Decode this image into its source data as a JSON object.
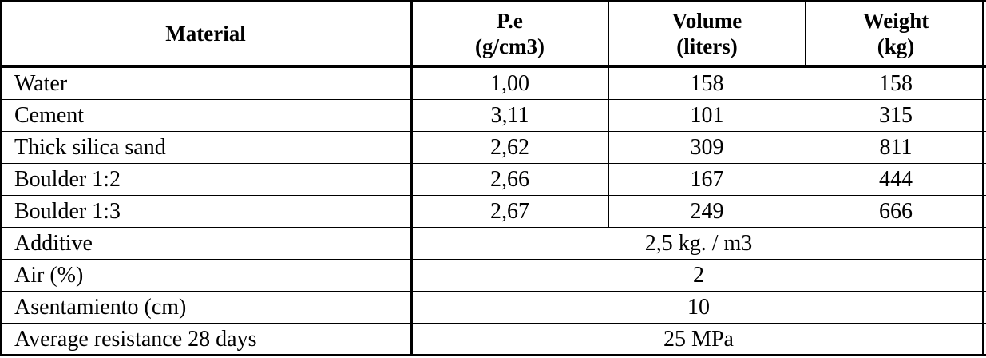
{
  "table": {
    "header": [
      [
        "Material"
      ],
      [
        "P.e",
        "(g/cm3)"
      ],
      [
        "Volume",
        "(liters)"
      ],
      [
        "Weight",
        "(kg)"
      ]
    ],
    "rows": [
      [
        "Water",
        "1,00",
        "158",
        "158"
      ],
      [
        "Cement",
        "3,11",
        "101",
        "315"
      ],
      [
        "Thick silica sand",
        "2,62",
        "309",
        "811"
      ],
      [
        "Boulder 1:2",
        "2,66",
        "167",
        "444"
      ],
      [
        "Boulder 1:3",
        "2,67",
        "249",
        "666"
      ],
      [
        "Additive",
        "2,5 kg. / m3"
      ],
      [
        "Air (%)",
        "2"
      ],
      [
        "Asentamiento (cm)",
        "10"
      ],
      [
        "Average resistance 28 days",
        "25 MPa"
      ]
    ]
  }
}
